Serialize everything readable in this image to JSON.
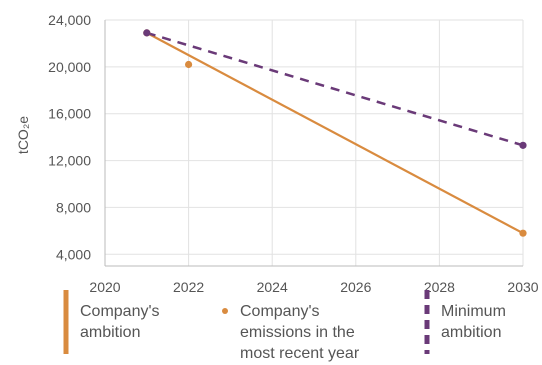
{
  "chart_data": {
    "type": "line",
    "ylabel": "tCO₂e",
    "x_ticks": [
      2020,
      2022,
      2024,
      2026,
      2028,
      2030
    ],
    "y_ticks": [
      4000,
      8000,
      12000,
      16000,
      20000,
      24000
    ],
    "y_tick_labels": [
      "4,000",
      "8,000",
      "12,000",
      "16,000",
      "20,000",
      "24,000"
    ],
    "xlim": [
      2020,
      2030
    ],
    "ylim": [
      3000,
      24000
    ],
    "grid": true,
    "legend_position": "bottom",
    "series": [
      {
        "name": "Company's ambition",
        "style": "solid",
        "color": "#d98b3f",
        "points": [
          [
            2021,
            22900
          ],
          [
            2030,
            5800
          ]
        ]
      },
      {
        "name": "Company's emissions in the most recent year",
        "style": "point",
        "color": "#d98b3f",
        "points": [
          [
            2022,
            20200
          ]
        ]
      },
      {
        "name": "Minimum ambition",
        "style": "dashed",
        "color": "#6a3a78",
        "points": [
          [
            2021,
            22900
          ],
          [
            2030,
            13300
          ]
        ]
      }
    ],
    "legend": [
      {
        "lines": [
          "Company's",
          "ambition"
        ],
        "marker": "bar",
        "color": "#d98b3f"
      },
      {
        "lines": [
          "Company's",
          "emissions in the",
          "most recent year"
        ],
        "marker": "dot",
        "color": "#d98b3f"
      },
      {
        "lines": [
          "Minimum",
          "ambition"
        ],
        "marker": "dashed-bar",
        "color": "#6a3a78"
      }
    ]
  }
}
